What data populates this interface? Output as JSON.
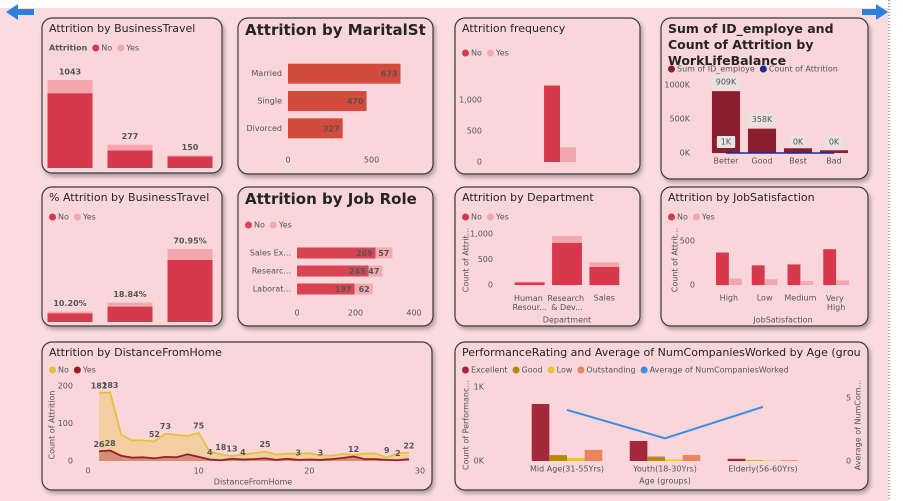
{
  "chart_data": [
    {
      "type": "bar",
      "title": "Attrition by BusinessTravel",
      "legend_title": "Attrition",
      "stacked": true,
      "categories": [
        null,
        null,
        null
      ],
      "series": [
        {
          "name": "No",
          "color": "#d63a4a",
          "values": [
            887,
            208,
            138
          ]
        },
        {
          "name": "Yes",
          "color": "#f2a7ae",
          "values": [
            156,
            69,
            12
          ]
        }
      ],
      "total_labels": [
        1043,
        277,
        150
      ]
    },
    {
      "type": "bar",
      "orientation": "horizontal",
      "title": "Attrition by MaritalStatus",
      "categories": [
        "Married",
        "Single",
        "Divorced"
      ],
      "values": [
        673,
        470,
        327
      ],
      "color": "#d24b3c",
      "xlim": [
        0,
        700
      ],
      "xticks": [
        0,
        500
      ]
    },
    {
      "type": "bar",
      "title": "Attrition frequency",
      "categories": [
        null
      ],
      "series": [
        {
          "name": "No",
          "color": "#d63a4a",
          "values": [
            1233
          ]
        },
        {
          "name": "Yes",
          "color": "#f2a7ae",
          "values": [
            237
          ]
        }
      ],
      "ylim": [
        0,
        1250
      ],
      "yticks": [
        0,
        500,
        {
          "value": 1000,
          "label": "1,000"
        }
      ]
    },
    {
      "type": "combo",
      "title": "Sum of ID_employe and Count of Attrition by WorkLifeBalance",
      "categories": [
        "Better",
        "Good",
        "Best",
        "Bad"
      ],
      "series": [
        {
          "name": "Sum of ID_employe",
          "color": "#8b1e2d",
          "values": [
            909000,
            358000,
            70000,
            40000
          ],
          "value_labels": [
            "909K",
            "358K",
            null,
            null
          ]
        },
        {
          "name": "Count of Attrition",
          "color": "#1f2a8c",
          "kind": "line",
          "values": [
            893,
            344,
            153,
            80
          ],
          "value_labels": [
            "1K",
            null,
            "0K",
            "0K"
          ]
        }
      ],
      "ylim": [
        0,
        1000000
      ],
      "yticks": [
        {
          "value": 0,
          "label": "0K"
        },
        {
          "value": 500000,
          "label": "500K"
        },
        {
          "value": 1000000,
          "label": "1000K"
        }
      ]
    },
    {
      "type": "bar",
      "title": "% Attrition by BusinessTravel",
      "stacked": true,
      "categories": [
        null,
        null,
        null
      ],
      "series": [
        {
          "name": "No",
          "color": "#d63a4a",
          "values": [
            8.5,
            15.0,
            60.3
          ]
        },
        {
          "name": "Yes",
          "color": "#f2a7ae",
          "values": [
            1.7,
            3.84,
            10.65
          ]
        }
      ],
      "total_labels": [
        "10.20%",
        "18.84%",
        "70.95%"
      ]
    },
    {
      "type": "bar",
      "orientation": "horizontal",
      "stacked": true,
      "title": "Attrition by Job Role",
      "categories": [
        "Sales Ex...",
        "Researc...",
        "Laborat..."
      ],
      "series": [
        {
          "name": "No",
          "color": "#d94452",
          "values": [
            269,
            245,
            197
          ]
        },
        {
          "name": "Yes",
          "color": "#f4aab0",
          "values": [
            57,
            47,
            62
          ]
        }
      ],
      "xlim": [
        0,
        400
      ],
      "xticks": [
        0,
        200,
        400
      ]
    },
    {
      "type": "bar",
      "stacked": true,
      "title": "Attrition by Department",
      "categories": [
        "Human Resour...",
        "Research & Dev...",
        "Sales"
      ],
      "series": [
        {
          "name": "No",
          "color": "#d63a4a",
          "values": [
            51,
            828,
            354
          ]
        },
        {
          "name": "Yes",
          "color": "#f2a7ae",
          "values": [
            12,
            133,
            92
          ]
        }
      ],
      "ylim": [
        0,
        1100
      ],
      "yticks": [
        0,
        500,
        {
          "value": 1000,
          "label": "1,000"
        }
      ],
      "y_label": "Count of Attrit...",
      "x_label": "Department"
    },
    {
      "type": "bar",
      "title": "Attrition by JobSatisfaction",
      "categories": [
        "High",
        "Low",
        "Medium",
        "Very High"
      ],
      "series": [
        {
          "name": "No",
          "color": "#d63a4a",
          "values": [
            369,
            223,
            234,
            407
          ]
        },
        {
          "name": "Yes",
          "color": "#f2a7ae",
          "values": [
            73,
            66,
            46,
            52
          ]
        }
      ],
      "ylim": [
        0,
        600
      ],
      "yticks": [
        0,
        500
      ],
      "y_label": "Count of Attrit...",
      "x_label": "JobSatisfaction"
    },
    {
      "type": "area",
      "title": "Attrition by DistanceFromHome",
      "x": [
        1,
        2,
        3,
        4,
        5,
        6,
        7,
        8,
        9,
        10,
        11,
        12,
        13,
        14,
        15,
        16,
        17,
        18,
        19,
        20,
        21,
        22,
        23,
        24,
        25,
        26,
        27,
        28,
        29
      ],
      "series": [
        {
          "name": "No",
          "color": "#e5c13a",
          "values": [
            182,
            183,
            70,
            55,
            55,
            52,
            73,
            70,
            67,
            75,
            25,
            18,
            13,
            17,
            21,
            25,
            17,
            20,
            19,
            21,
            15,
            14,
            19,
            16,
            20,
            20,
            9,
            21,
            22
          ],
          "value_labels": [
            "182",
            "183",
            null,
            null,
            null,
            "52",
            "73",
            null,
            null,
            "75",
            null,
            "18",
            "13",
            null,
            null,
            "25",
            null,
            null,
            null,
            null,
            null,
            null,
            null,
            null,
            null,
            null,
            "9",
            null,
            "22"
          ]
        },
        {
          "name": "Yes",
          "color": "#9b1b2b",
          "values": [
            26,
            28,
            14,
            9,
            10,
            7,
            11,
            10,
            18,
            11,
            4,
            2,
            6,
            4,
            5,
            7,
            3,
            6,
            3,
            4,
            3,
            5,
            8,
            12,
            5,
            5,
            3,
            2,
            5
          ],
          "value_labels": [
            "26",
            "28",
            null,
            null,
            null,
            null,
            null,
            null,
            null,
            null,
            "4",
            null,
            null,
            "4",
            null,
            null,
            null,
            null,
            "3",
            null,
            "3",
            null,
            null,
            "12",
            null,
            null,
            null,
            "2",
            null
          ]
        }
      ],
      "xlim": [
        0,
        30
      ],
      "xticks": [
        0,
        10,
        20,
        30
      ],
      "ylim": [
        0,
        200
      ],
      "yticks": [
        0,
        100,
        200
      ],
      "x_label": "DistanceFromHome",
      "y_label": "Count of Attrition"
    },
    {
      "type": "combo",
      "title": "PerformanceRating and Average of NumCompaniesWorked by Age (groups) ...",
      "categories": [
        "Mid Age(31-55Yrs)",
        "Youth(18-30Yrs)",
        "Elderly(56-60Yrs)"
      ],
      "series": [
        {
          "name": "Excellent",
          "color": "#a3283a",
          "values": [
            770,
            270,
            30
          ]
        },
        {
          "name": "Good",
          "color": "#b58a12",
          "values": [
            80,
            60,
            8
          ]
        },
        {
          "name": "Low",
          "color": "#e8c43c",
          "values": [
            40,
            20,
            5
          ]
        },
        {
          "name": "Outstanding",
          "color": "#e9845e",
          "values": [
            150,
            80,
            10
          ]
        },
        {
          "name": "Average of NumCompaniesWorked",
          "color": "#3a8ee6",
          "kind": "line",
          "axis": "y2",
          "values": [
            4.05,
            1.8,
            4.3
          ]
        }
      ],
      "ylim": [
        0,
        1000
      ],
      "yticks": [
        {
          "value": 0,
          "label": "0K"
        },
        {
          "value": 1000,
          "label": "1K"
        }
      ],
      "y2lim": [
        0,
        5
      ],
      "y2ticks": [
        0,
        5
      ],
      "x_label": "Age (groups)",
      "y_label": "Count of Performanc...",
      "y2_label": "Average of NumCom..."
    }
  ]
}
